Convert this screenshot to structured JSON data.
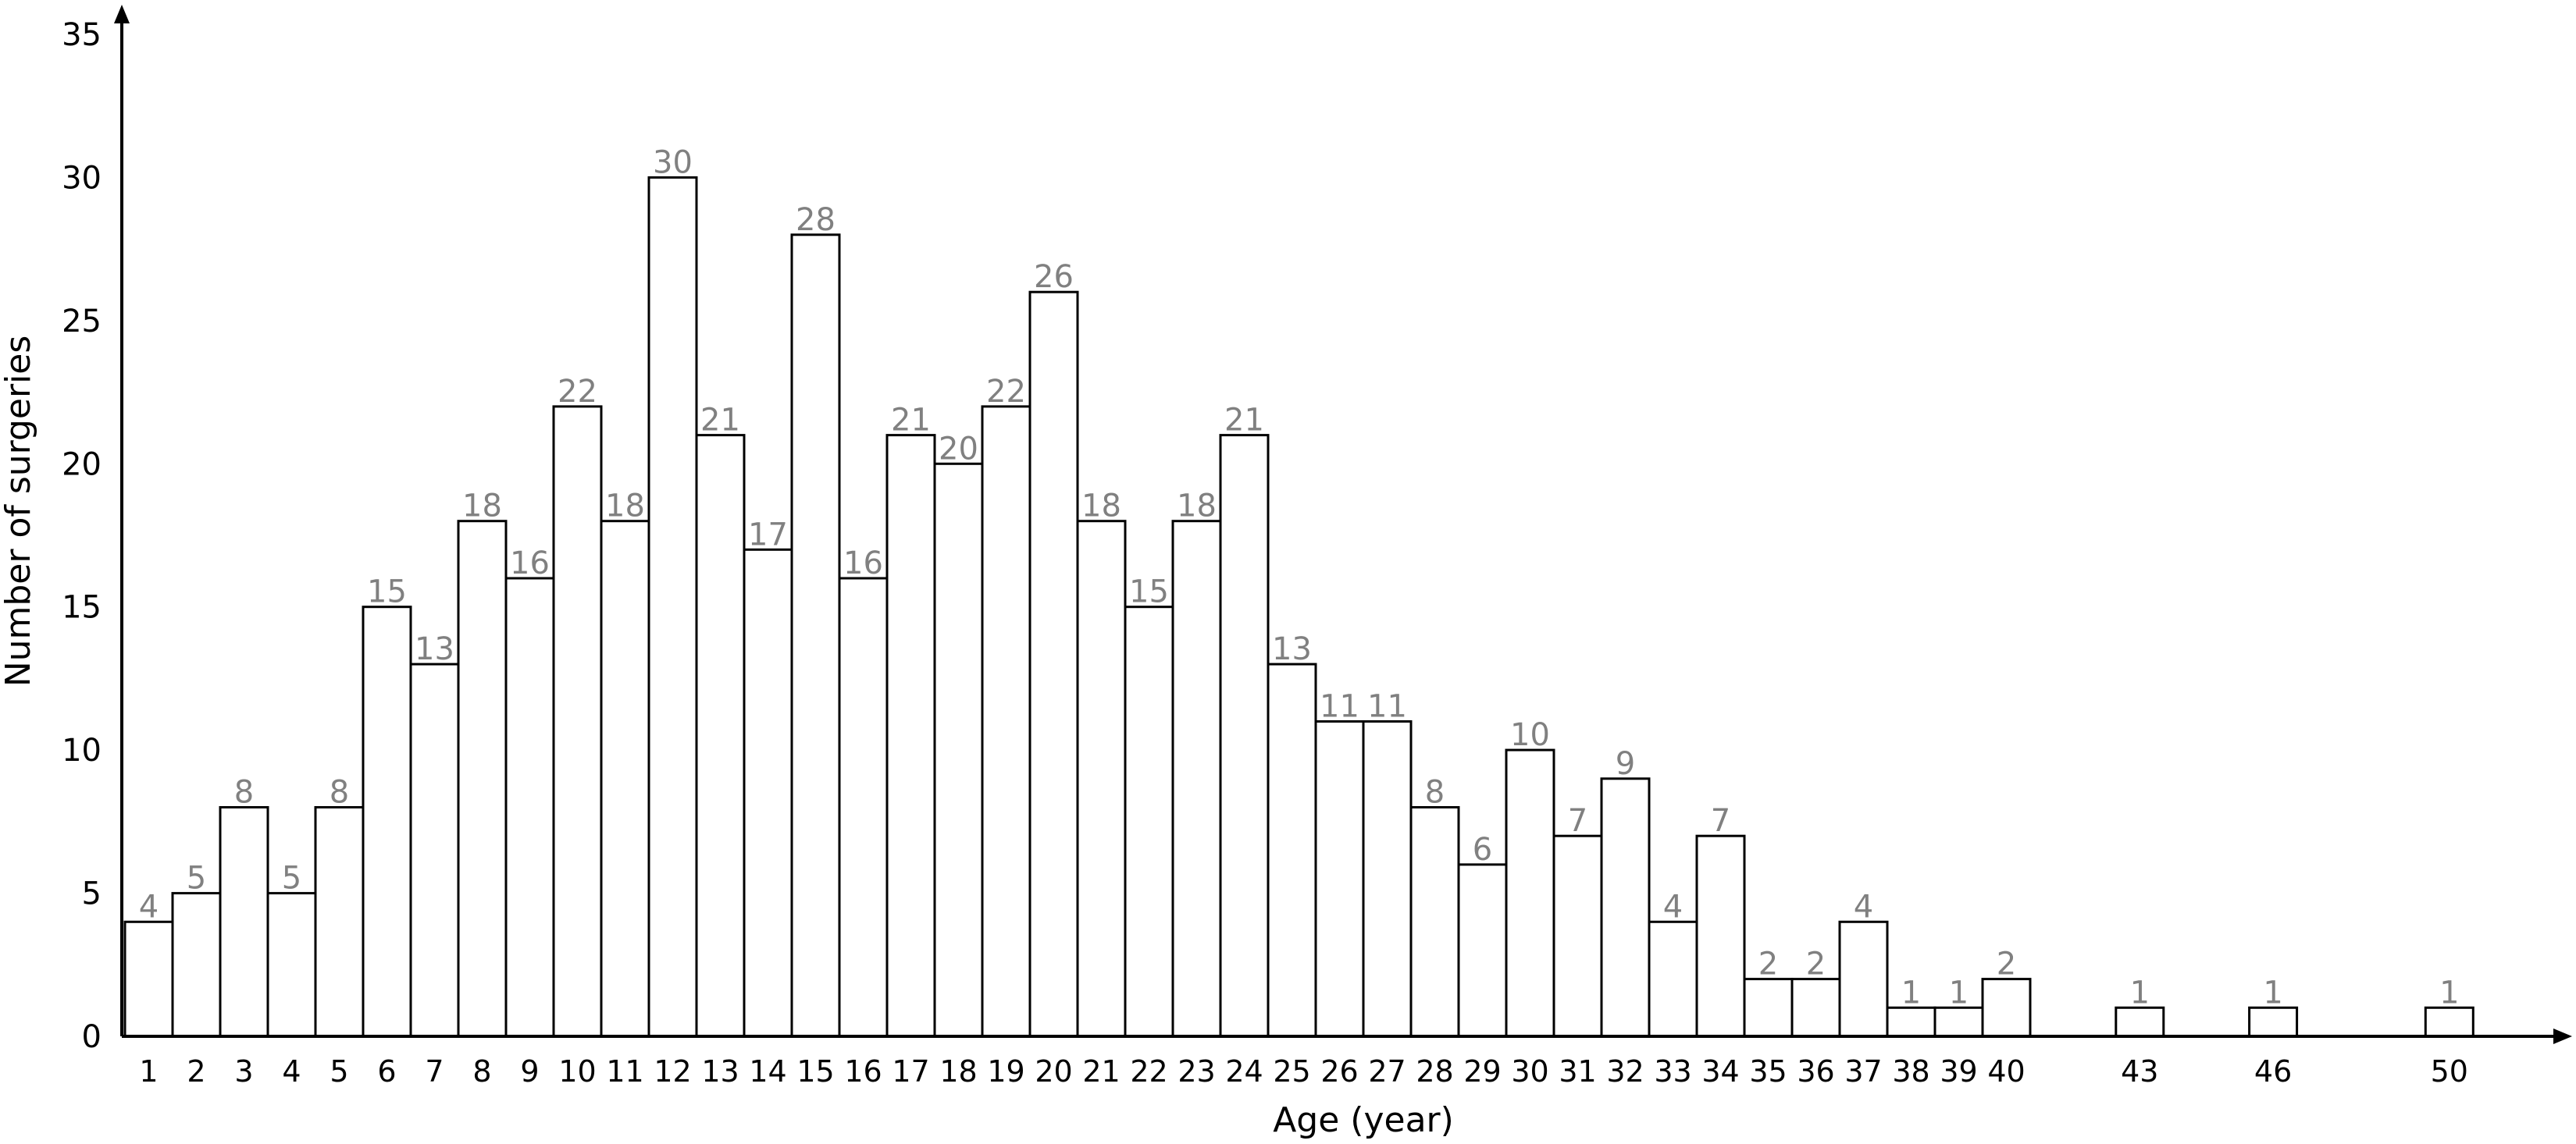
{
  "chart_data": {
    "type": "bar",
    "title": "",
    "xlabel": "Age (year)",
    "ylabel": "Number of surgeries",
    "ylim": [
      0,
      35
    ],
    "yticks": [
      0,
      5,
      10,
      15,
      20,
      25,
      30,
      35
    ],
    "grid": false,
    "legend": "none",
    "categories": [
      "1",
      "2",
      "3",
      "4",
      "5",
      "6",
      "7",
      "8",
      "9",
      "10",
      "11",
      "12",
      "13",
      "14",
      "15",
      "16",
      "17",
      "18",
      "19",
      "20",
      "21",
      "22",
      "23",
      "24",
      "25",
      "26",
      "27",
      "28",
      "29",
      "30",
      "31",
      "32",
      "33",
      "34",
      "35",
      "36",
      "37",
      "38",
      "39",
      "40",
      "43",
      "46",
      "50"
    ],
    "x": [
      1,
      2,
      3,
      4,
      5,
      6,
      7,
      8,
      9,
      10,
      11,
      12,
      13,
      14,
      15,
      16,
      17,
      18,
      19,
      20,
      21,
      22,
      23,
      24,
      25,
      26,
      27,
      28,
      29,
      30,
      31,
      32,
      33,
      34,
      35,
      36,
      37,
      38,
      39,
      40,
      43,
      46,
      50
    ],
    "values": [
      4,
      5,
      8,
      5,
      8,
      15,
      13,
      18,
      16,
      22,
      18,
      30,
      21,
      17,
      28,
      16,
      21,
      20,
      22,
      26,
      18,
      15,
      18,
      21,
      13,
      11,
      11,
      8,
      6,
      10,
      7,
      9,
      4,
      7,
      2,
      2,
      4,
      1,
      1,
      2,
      1,
      1,
      1
    ],
    "bar_color": "#ffffff",
    "bar_edge_color": "#000000",
    "label_color": "#808080"
  }
}
